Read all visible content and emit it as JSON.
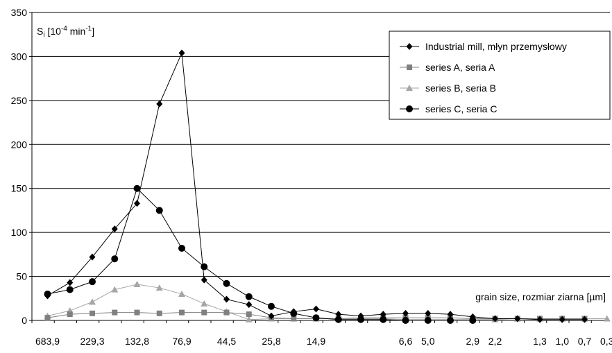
{
  "chart_data": {
    "type": "line",
    "ylabel_main": "S",
    "ylabel_sub": "i",
    "ylabel_open": " [10",
    "ylabel_exp1": "-4",
    "ylabel_unit": " min",
    "ylabel_exp2": "-1",
    "ylabel_close": "]",
    "xlabel": "grain size, rozmiar ziarna [µm]",
    "ylim": [
      0,
      350
    ],
    "yticks": [
      0,
      50,
      100,
      150,
      200,
      250,
      300,
      350
    ],
    "x_tick_labels": [
      {
        "label": "683,9",
        "idx": 0
      },
      {
        "label": "229,3",
        "idx": 2
      },
      {
        "label": "132,8",
        "idx": 4
      },
      {
        "label": "76,9",
        "idx": 6
      },
      {
        "label": "44,5",
        "idx": 8
      },
      {
        "label": "25,8",
        "idx": 10
      },
      {
        "label": "14,9",
        "idx": 12
      },
      {
        "label": "6,6",
        "idx": 16
      },
      {
        "label": "5,0",
        "idx": 17
      },
      {
        "label": "2,9",
        "idx": 19
      },
      {
        "label": "2,2",
        "idx": 20
      },
      {
        "label": "1,3",
        "idx": 22
      },
      {
        "label": "1,0",
        "idx": 23
      },
      {
        "label": "0,7",
        "idx": 24
      },
      {
        "label": "0,3",
        "idx": 25
      }
    ],
    "legend_position": "top-right",
    "grid": true,
    "series": [
      {
        "name": "Industrial mill, młyn przemysłowy",
        "marker": "diamond",
        "color": "#000000",
        "values": [
          28,
          43,
          72,
          104,
          133,
          246,
          304,
          46,
          24,
          18,
          5,
          10,
          13,
          7,
          5,
          7,
          8,
          8,
          7,
          4,
          2,
          2,
          1,
          1,
          1
        ]
      },
      {
        "name": "series A, seria A",
        "marker": "square",
        "color": "#808080",
        "values": [
          3,
          7,
          8,
          9,
          9,
          8,
          9,
          9,
          9,
          7,
          3,
          2,
          2,
          2,
          3,
          3,
          3,
          3,
          3,
          2,
          2,
          2,
          2,
          2,
          2
        ]
      },
      {
        "name": "series B, seria B",
        "marker": "triangle",
        "color": "#a6a6a6",
        "values": [
          5,
          11,
          21,
          35,
          41,
          37,
          30,
          19,
          10,
          1,
          2,
          2,
          2,
          2,
          2,
          2,
          1,
          1,
          1,
          1,
          1,
          2,
          2,
          2,
          2,
          2
        ]
      },
      {
        "name": "series C, seria C",
        "marker": "circle",
        "color": "#000000",
        "values": [
          30,
          35,
          44,
          70,
          150,
          125,
          82,
          61,
          42,
          27,
          16,
          8,
          3,
          1,
          1,
          1,
          0,
          0,
          0,
          0
        ]
      }
    ]
  }
}
